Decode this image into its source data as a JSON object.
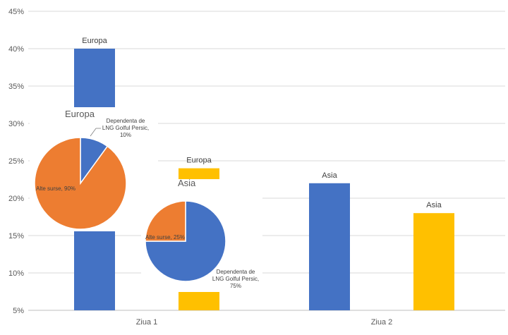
{
  "chart_data": [
    {
      "type": "bar",
      "categories": [
        "Ziua 1",
        "Ziua 2"
      ],
      "series": [
        {
          "name": "Europa",
          "values": [
            40,
            22
          ],
          "color": "#4472C4"
        },
        {
          "name": "Asia",
          "values": [
            24,
            18
          ],
          "color": "#FFC000"
        }
      ],
      "data_labels": [
        "Europa",
        "Asia",
        "Europa",
        "Asia"
      ],
      "yticks": [
        "5%",
        "10%",
        "15%",
        "20%",
        "25%",
        "30%",
        "35%",
        "40%",
        "45%"
      ],
      "ylim": [
        5,
        45
      ],
      "grid": true
    },
    {
      "type": "pie",
      "title": "Europa",
      "slices": [
        {
          "label": "Dependenta de LNG Golful Persic, 10%",
          "value": 10,
          "color": "#4472C4"
        },
        {
          "label": "Alte surse, 90%",
          "value": 90,
          "color": "#ED7D31"
        }
      ]
    },
    {
      "type": "pie",
      "title": "Asia",
      "slices": [
        {
          "label": "Dependenta de LNG Golful Persic, 75%",
          "value": 75,
          "color": "#4472C4"
        },
        {
          "label": "Alte surse, 25%",
          "value": 25,
          "color": "#ED7D31"
        }
      ]
    }
  ]
}
